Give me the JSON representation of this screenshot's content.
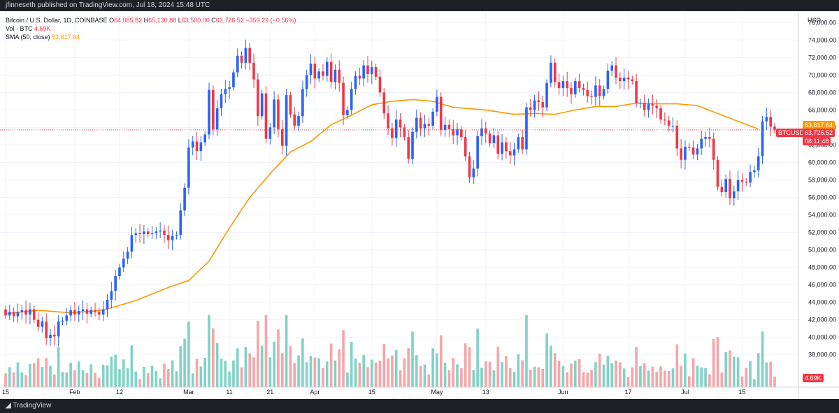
{
  "header": {
    "text": "jfinneseth published on TradingView.com, Jul 18, 2024 15:48 UTC"
  },
  "legend": {
    "symbol": "Bitcoin / U.S. Dollar, 1D, COINBASE",
    "o_label": "O",
    "o_value": "64,085.82",
    "h_label": "H",
    "h_value": "65,130.88",
    "l_label": "L",
    "l_value": "63,500.00",
    "c_label": "C",
    "c_value": "63,726.52",
    "change": "−359.29 (−0.56%)",
    "vol_label": "Vol · BTC",
    "vol_value": "4.69K",
    "sma_label": "SMA (50, close)",
    "sma_value": "63,817.64"
  },
  "axis": {
    "currency": "USD"
  },
  "tags": {
    "sma": "63,817.64",
    "symbol": "BTCUSD",
    "price": "63,726.52",
    "countdown": "08:11:48",
    "volume": "4.69K"
  },
  "footer": {
    "brand": "TradingView"
  },
  "colors": {
    "up": "#2962ff",
    "down": "#f23645",
    "vol_up": "#7fd3c6",
    "vol_down": "#f7a5a8",
    "sma": "#ff9800"
  },
  "chart_data": {
    "type": "candlestick",
    "title": "Bitcoin / U.S. Dollar, 1D, COINBASE",
    "ylim": [
      34300,
      77300
    ],
    "y_ticks": [
      38000,
      40000,
      42000,
      44000,
      46000,
      48000,
      50000,
      52000,
      54000,
      56000,
      58000,
      60000,
      62000,
      64000,
      66000,
      68000,
      70000,
      72000,
      74000,
      76000
    ],
    "x_ticks": [
      {
        "label": "15",
        "index": 0
      },
      {
        "label": "Feb",
        "index": 17
      },
      {
        "label": "12",
        "index": 28
      },
      {
        "label": "Mar",
        "index": 45
      },
      {
        "label": "11",
        "index": 55
      },
      {
        "label": "21",
        "index": 65
      },
      {
        "label": "Apr",
        "index": 76
      },
      {
        "label": "15",
        "index": 90
      },
      {
        "label": "May",
        "index": 106
      },
      {
        "label": "13",
        "index": 118
      },
      {
        "label": "Jun",
        "index": 137
      },
      {
        "label": "17",
        "index": 153
      },
      {
        "label": "Jul",
        "index": 167
      },
      {
        "label": "15",
        "index": 181
      }
    ],
    "candles_oc": [
      [
        43200,
        42500
      ],
      [
        42500,
        42900
      ],
      [
        42900,
        42400
      ],
      [
        42400,
        42900
      ],
      [
        42900,
        43100
      ],
      [
        43100,
        42600
      ],
      [
        42600,
        43200
      ],
      [
        43200,
        42000
      ],
      [
        42000,
        41200
      ],
      [
        41200,
        41800
      ],
      [
        41800,
        39900
      ],
      [
        39900,
        40300
      ],
      [
        40300,
        40100
      ],
      [
        40100,
        41800
      ],
      [
        41800,
        41900
      ],
      [
        41900,
        42500
      ],
      [
        42500,
        43100
      ],
      [
        43100,
        42600
      ],
      [
        42600,
        43000
      ],
      [
        43000,
        43200
      ],
      [
        43200,
        42700
      ],
      [
        42700,
        43100
      ],
      [
        43100,
        42900
      ],
      [
        42900,
        42600
      ],
      [
        42600,
        43200
      ],
      [
        43200,
        44300
      ],
      [
        44300,
        45300
      ],
      [
        45300,
        47000
      ],
      [
        47000,
        48000
      ],
      [
        48000,
        49000
      ],
      [
        49000,
        49800
      ],
      [
        49800,
        51700
      ],
      [
        51700,
        51900
      ],
      [
        51900,
        51800
      ],
      [
        51800,
        52100
      ],
      [
        52100,
        51800
      ],
      [
        51800,
        51900
      ],
      [
        51900,
        52100
      ],
      [
        52100,
        52200
      ],
      [
        52200,
        51700
      ],
      [
        51700,
        51100
      ],
      [
        51100,
        51600
      ],
      [
        51600,
        51700
      ],
      [
        51700,
        54500
      ],
      [
        54500,
        57100
      ],
      [
        57100,
        61700
      ],
      [
        61700,
        62400
      ],
      [
        62400,
        61300
      ],
      [
        61300,
        62300
      ],
      [
        62300,
        63200
      ],
      [
        63200,
        68300
      ],
      [
        68300,
        63800
      ],
      [
        63800,
        66200
      ],
      [
        66200,
        67800
      ],
      [
        67800,
        68400
      ],
      [
        68400,
        68600
      ],
      [
        68600,
        70300
      ],
      [
        70300,
        72200
      ],
      [
        72200,
        71400
      ],
      [
        71400,
        73100
      ],
      [
        73100,
        71400
      ],
      [
        71400,
        69500
      ],
      [
        69500,
        65300
      ],
      [
        65300,
        67900
      ],
      [
        67900,
        62700
      ],
      [
        62700,
        64000
      ],
      [
        64000,
        67200
      ],
      [
        67200,
        63800
      ],
      [
        63800,
        61900
      ],
      [
        61900,
        67700
      ],
      [
        67700,
        65500
      ],
      [
        65500,
        64200
      ],
      [
        64200,
        65300
      ],
      [
        65300,
        68400
      ],
      [
        68400,
        70000
      ],
      [
        70000,
        71300
      ],
      [
        71300,
        69600
      ],
      [
        69600,
        70400
      ],
      [
        70400,
        69900
      ],
      [
        69900,
        71500
      ],
      [
        71500,
        69200
      ],
      [
        69200,
        70600
      ],
      [
        70600,
        69100
      ],
      [
        69100,
        65400
      ],
      [
        65400,
        66000
      ],
      [
        66000,
        68400
      ],
      [
        68400,
        69900
      ],
      [
        69900,
        69600
      ],
      [
        69600,
        71100
      ],
      [
        71100,
        70100
      ],
      [
        70100,
        70900
      ],
      [
        70900,
        69800
      ],
      [
        69800,
        68000
      ],
      [
        68000,
        65600
      ],
      [
        65600,
        63900
      ],
      [
        63900,
        62800
      ],
      [
        62800,
        64900
      ],
      [
        64900,
        64000
      ],
      [
        64000,
        62900
      ],
      [
        62900,
        60400
      ],
      [
        60400,
        63500
      ],
      [
        63500,
        65100
      ],
      [
        65100,
        63900
      ],
      [
        63900,
        64400
      ],
      [
        64400,
        64200
      ],
      [
        64200,
        65800
      ],
      [
        65800,
        67500
      ],
      [
        67500,
        63700
      ],
      [
        63700,
        64300
      ],
      [
        64300,
        63800
      ],
      [
        63800,
        63100
      ],
      [
        63100,
        63800
      ],
      [
        63800,
        62900
      ],
      [
        62900,
        60700
      ],
      [
        60700,
        58300
      ],
      [
        58300,
        59300
      ],
      [
        59300,
        63000
      ],
      [
        63000,
        63900
      ],
      [
        63900,
        63300
      ],
      [
        63300,
        62200
      ],
      [
        62200,
        63100
      ],
      [
        63100,
        61000
      ],
      [
        61000,
        62300
      ],
      [
        62300,
        61300
      ],
      [
        61300,
        60800
      ],
      [
        60800,
        61500
      ],
      [
        61500,
        62900
      ],
      [
        62900,
        61500
      ],
      [
        61500,
        66300
      ],
      [
        66300,
        66000
      ],
      [
        66000,
        67100
      ],
      [
        67100,
        66900
      ],
      [
        66900,
        66300
      ],
      [
        66300,
        69100
      ],
      [
        69100,
        71400
      ],
      [
        71400,
        69200
      ],
      [
        69200,
        68500
      ],
      [
        68500,
        69300
      ],
      [
        69300,
        68500
      ],
      [
        68500,
        67800
      ],
      [
        67800,
        69300
      ],
      [
        69300,
        68500
      ],
      [
        68500,
        68300
      ],
      [
        68300,
        67600
      ],
      [
        67600,
        67500
      ],
      [
        67500,
        68800
      ],
      [
        68800,
        67600
      ],
      [
        67600,
        68400
      ],
      [
        68400,
        70500
      ],
      [
        70500,
        71100
      ],
      [
        71100,
        69700
      ],
      [
        69700,
        69300
      ],
      [
        69300,
        69700
      ],
      [
        69700,
        69500
      ],
      [
        69500,
        69300
      ],
      [
        69300,
        66800
      ],
      [
        66800,
        66800
      ],
      [
        66800,
        66000
      ],
      [
        66000,
        66700
      ],
      [
        66700,
        66500
      ],
      [
        66500,
        66200
      ],
      [
        66200,
        64900
      ],
      [
        64900,
        64800
      ],
      [
        64800,
        64200
      ],
      [
        64200,
        64200
      ],
      [
        64200,
        61600
      ],
      [
        61600,
        60300
      ],
      [
        60300,
        61800
      ],
      [
        61800,
        61700
      ],
      [
        61700,
        60900
      ],
      [
        60900,
        61600
      ],
      [
        61600,
        62700
      ],
      [
        62700,
        62900
      ],
      [
        62900,
        62700
      ],
      [
        62700,
        60300
      ],
      [
        60300,
        57200
      ],
      [
        57200,
        56600
      ],
      [
        56600,
        58100
      ],
      [
        58100,
        55900
      ],
      [
        55900,
        56700
      ],
      [
        56700,
        58000
      ],
      [
        58000,
        57800
      ],
      [
        57800,
        57700
      ],
      [
        57700,
        58900
      ],
      [
        58900,
        59100
      ],
      [
        59100,
        60700
      ],
      [
        60700,
        64700
      ],
      [
        64700,
        65200
      ],
      [
        65200,
        64100
      ],
      [
        64100,
        63726
      ]
    ],
    "sma_points": [
      [
        0,
        42700
      ],
      [
        8,
        43100
      ],
      [
        16,
        42800
      ],
      [
        24,
        43100
      ],
      [
        32,
        44200
      ],
      [
        40,
        45700
      ],
      [
        45,
        46500
      ],
      [
        50,
        48700
      ],
      [
        55,
        52500
      ],
      [
        60,
        56000
      ],
      [
        65,
        58700
      ],
      [
        70,
        61200
      ],
      [
        75,
        62400
      ],
      [
        80,
        64300
      ],
      [
        85,
        65400
      ],
      [
        90,
        66600
      ],
      [
        95,
        67000
      ],
      [
        100,
        67200
      ],
      [
        105,
        67000
      ],
      [
        110,
        66300
      ],
      [
        118,
        66000
      ],
      [
        125,
        65500
      ],
      [
        130,
        65600
      ],
      [
        135,
        65500
      ],
      [
        140,
        66000
      ],
      [
        145,
        66400
      ],
      [
        150,
        66400
      ],
      [
        155,
        66800
      ],
      [
        160,
        66700
      ],
      [
        165,
        66700
      ],
      [
        170,
        66500
      ],
      [
        175,
        65600
      ],
      [
        180,
        64700
      ],
      [
        185,
        63818
      ]
    ]
  }
}
